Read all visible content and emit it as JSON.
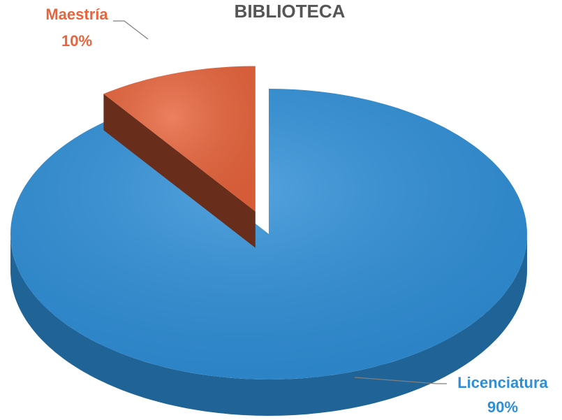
{
  "chart_data": {
    "type": "pie",
    "title": "BIBLIOTECA",
    "categories": [
      "Maestría",
      "Licenciatura"
    ],
    "values": [
      10,
      90
    ],
    "value_labels": [
      "10%",
      "90%"
    ],
    "colors": [
      "#e8643c",
      "#2e8fd8"
    ]
  }
}
